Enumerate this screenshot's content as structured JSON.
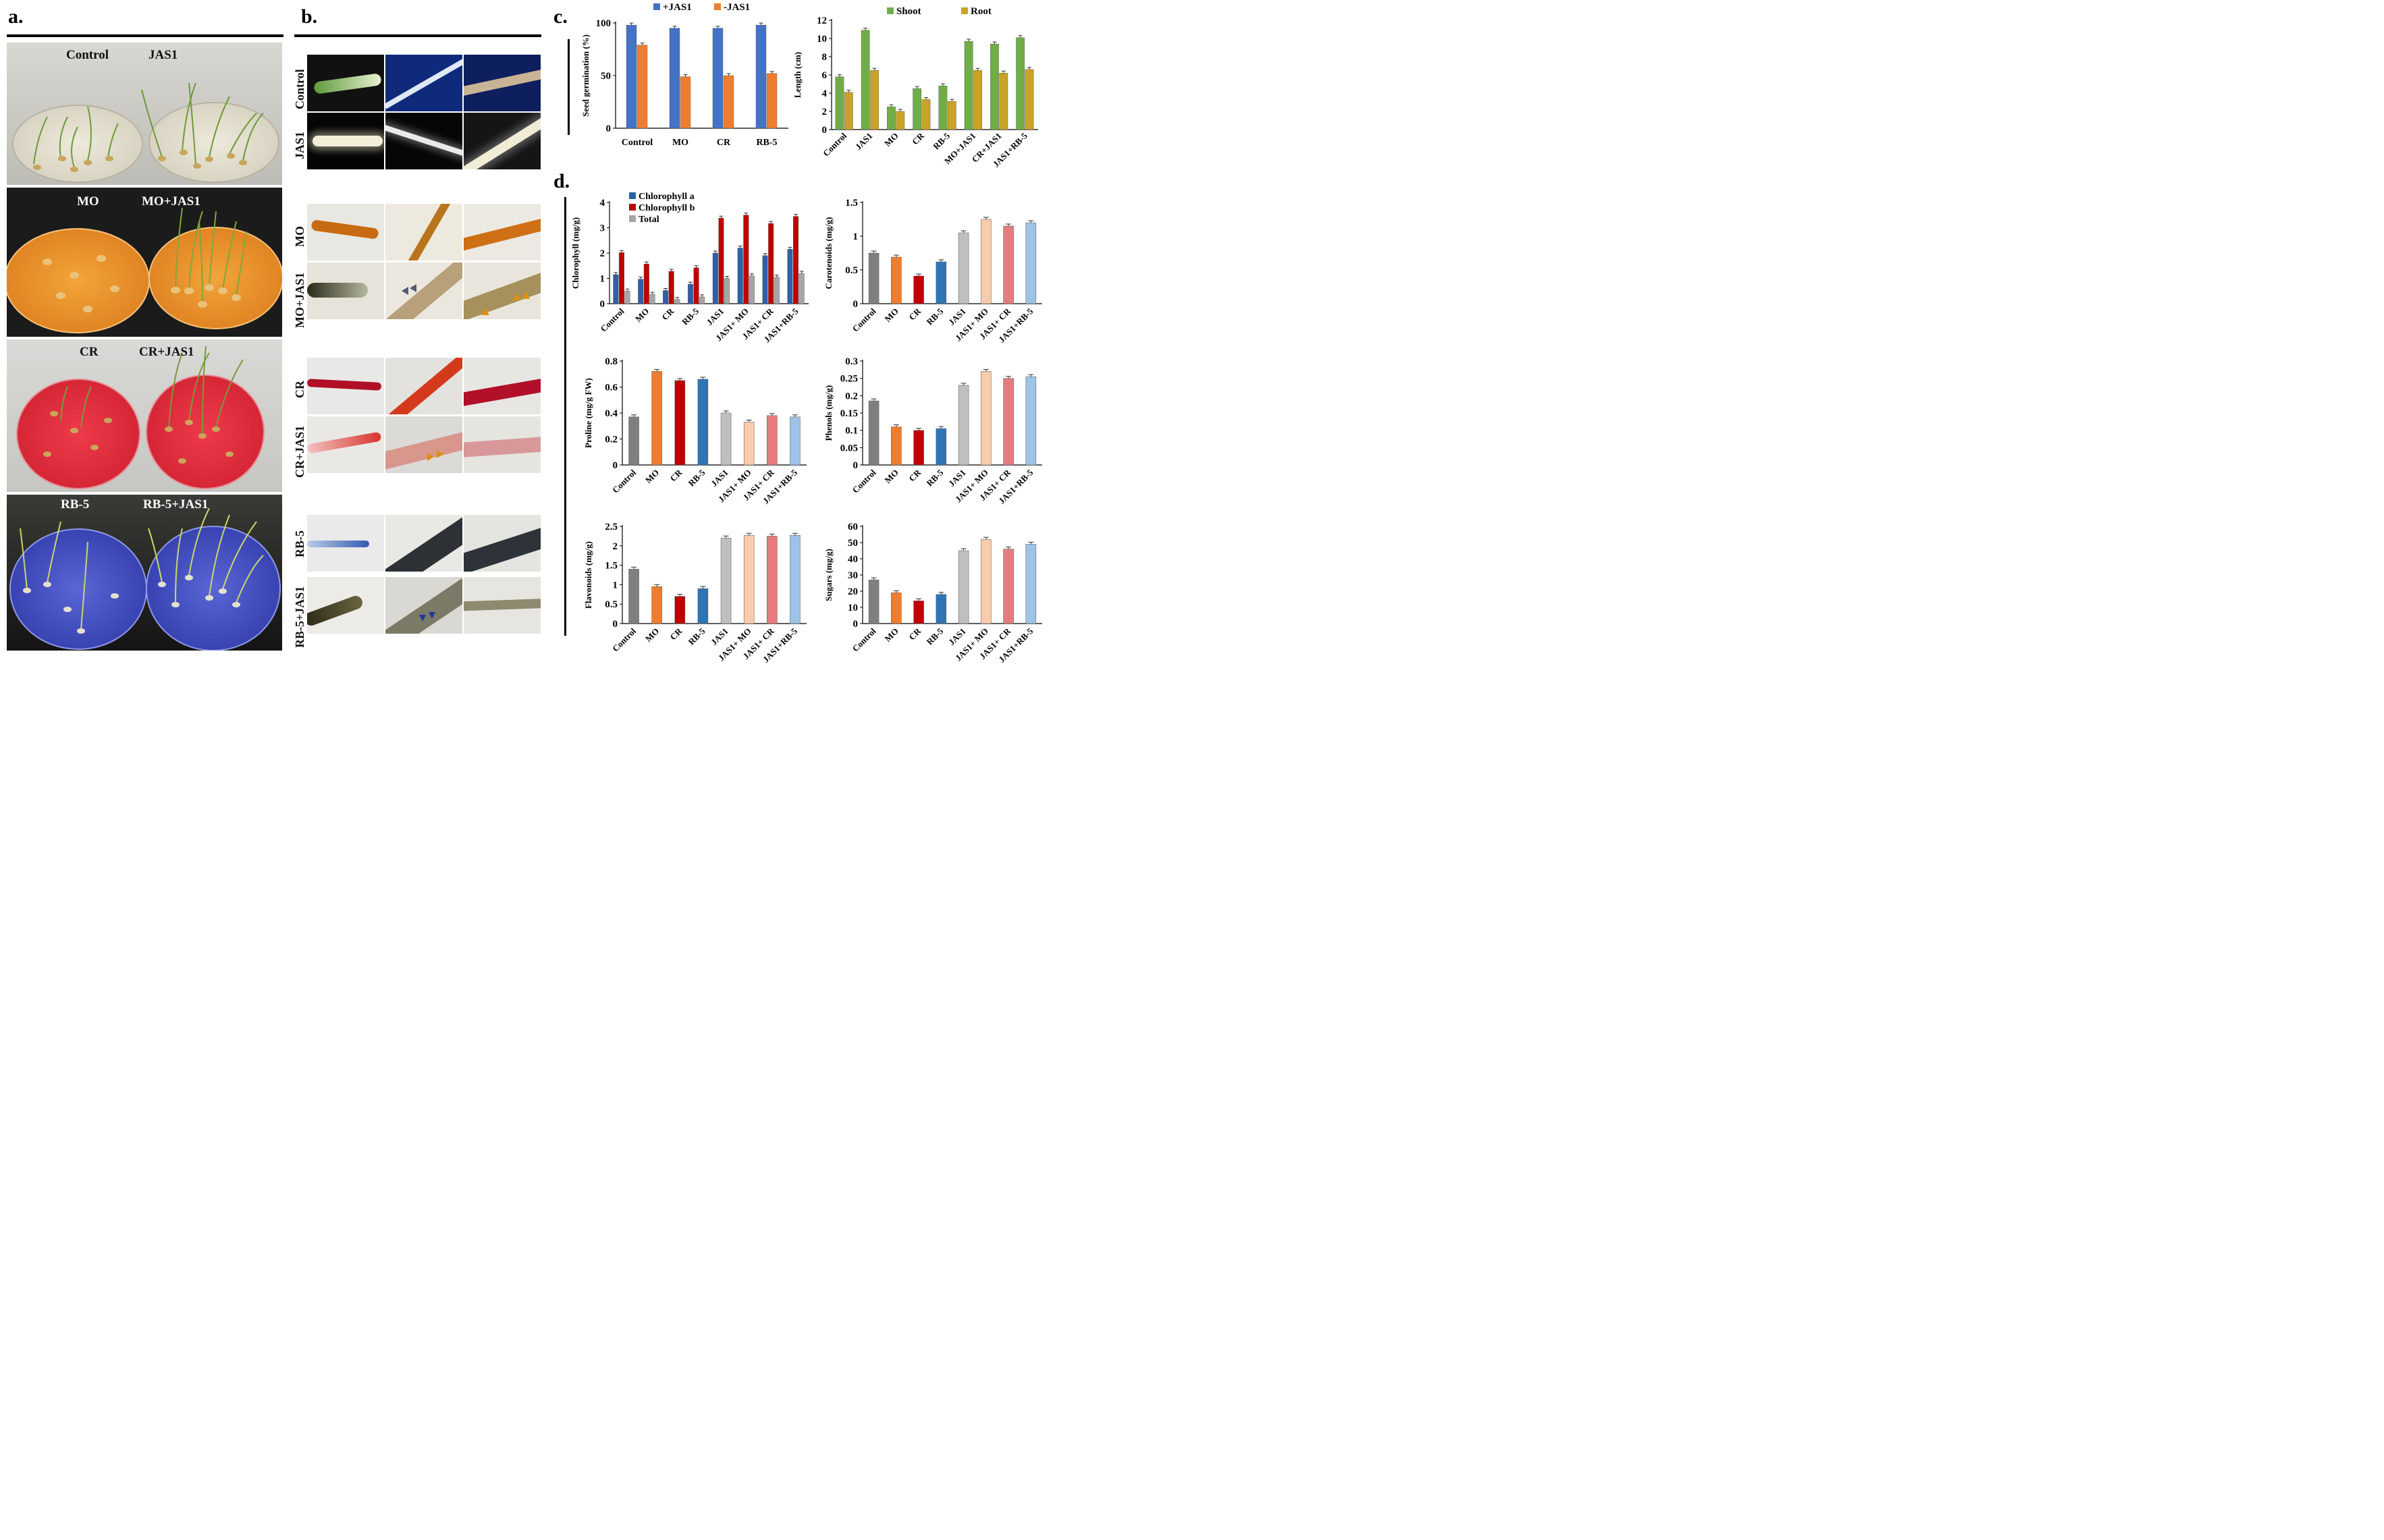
{
  "panels": {
    "a": "a.",
    "b": "b.",
    "c": "c.",
    "d": "d."
  },
  "colors": {
    "plus_jas1": "#4472c4",
    "minus_jas1": "#ed7d31",
    "shoot": "#70ad47",
    "root": "#c9a227",
    "chl_a": "#2e5fa8",
    "chl_b": "#c00000",
    "total": "#a6a6a6",
    "treat": [
      "#7f7f7f",
      "#ed7d31",
      "#c00000",
      "#2e75b6",
      "#bfbfbf",
      "#f8cbad",
      "#e67c7c",
      "#9dc3e6"
    ]
  },
  "panel_a": {
    "dishes": [
      {
        "left": "Control",
        "right": "JAS1"
      },
      {
        "left": "MO",
        "right": "MO+JAS1"
      },
      {
        "left": "CR",
        "right": "CR+JAS1"
      },
      {
        "left": "RB-5",
        "right": "RB-5+JAS1"
      }
    ]
  },
  "panel_b": {
    "rows": [
      "Control",
      "JAS1",
      "MO",
      "MO+JAS1",
      "CR",
      "CR+JAS1",
      "RB-5",
      "RB-5+JAS1"
    ]
  },
  "chart_data": [
    {
      "type": "bar",
      "title": "",
      "xlabel": "",
      "ylabel": "Seed germination (%)",
      "categories": [
        "Control",
        "MO",
        "CR",
        "RB-5"
      ],
      "series": [
        {
          "name": "+JAS1",
          "values": [
            98,
            95,
            95,
            98
          ]
        },
        {
          "name": "-JAS1",
          "values": [
            79,
            49,
            50,
            52
          ]
        }
      ],
      "ylim": [
        0,
        100
      ],
      "yticks": [
        0,
        50,
        100
      ],
      "legend": "top"
    },
    {
      "type": "bar",
      "title": "",
      "xlabel": "",
      "ylabel": "Length (cm)",
      "categories": [
        "Control",
        "JAS1",
        "MO",
        "CR",
        "RB-5",
        "MO+JAS1",
        "CR+JAS1",
        "JAS1+RB-5"
      ],
      "series": [
        {
          "name": "Shoot",
          "values": [
            5.8,
            10.9,
            2.5,
            4.5,
            4.8,
            9.7,
            9.4,
            10.1
          ]
        },
        {
          "name": "Root",
          "values": [
            4.1,
            6.5,
            2.0,
            3.3,
            3.1,
            6.5,
            6.2,
            6.6
          ]
        }
      ],
      "ylim": [
        0,
        12
      ],
      "yticks": [
        0,
        2,
        4,
        6,
        8,
        10,
        12
      ],
      "legend": "top"
    },
    {
      "type": "bar",
      "title": "",
      "xlabel": "",
      "ylabel": "Chlorophyll (mg/g)",
      "categories": [
        "Control",
        "MO",
        "CR",
        "RB-5",
        "JAS1",
        "JAS1+ MO",
        "JAS1+ CR",
        "JAS1+RB-5"
      ],
      "series": [
        {
          "name": "Chlorophyll a",
          "values": [
            1.15,
            0.97,
            0.52,
            0.77,
            2.0,
            2.2,
            1.9,
            2.15
          ]
        },
        {
          "name": "Chlorophyll b",
          "values": [
            2.02,
            1.57,
            1.28,
            1.42,
            3.38,
            3.5,
            3.17,
            3.45
          ]
        },
        {
          "name": "Total",
          "values": [
            0.5,
            0.37,
            0.17,
            0.27,
            1.0,
            1.1,
            1.05,
            1.2
          ]
        }
      ],
      "ylim": [
        0,
        4
      ],
      "yticks": [
        0,
        1,
        2,
        3,
        4
      ],
      "legend": "top-left"
    },
    {
      "type": "bar",
      "title": "",
      "xlabel": "",
      "ylabel": "Carotenoids (mg/g)",
      "categories": [
        "Control",
        "MO",
        "CR",
        "RB-5",
        "JAS1",
        "JAS1+ MO",
        "JAS1+ CR",
        "JAS1+RB-5"
      ],
      "values": [
        0.75,
        0.69,
        0.41,
        0.62,
        1.05,
        1.25,
        1.15,
        1.2
      ],
      "ylim": [
        0,
        1.5
      ],
      "yticks": [
        0,
        0.5,
        1,
        1.5
      ]
    },
    {
      "type": "bar",
      "title": "",
      "xlabel": "",
      "ylabel": "Proline (mg/g FW)",
      "categories": [
        "Control",
        "MO",
        "CR",
        "RB-5",
        "JAS1",
        "JAS1+ MO",
        "JAS1+ CR",
        "JAS1+RB-5"
      ],
      "values": [
        0.37,
        0.72,
        0.65,
        0.66,
        0.4,
        0.33,
        0.38,
        0.37
      ],
      "ylim": [
        0,
        0.8
      ],
      "yticks": [
        0,
        0.2,
        0.4,
        0.6,
        0.8
      ]
    },
    {
      "type": "bar",
      "title": "",
      "xlabel": "",
      "ylabel": "Phenols (mg/g)",
      "categories": [
        "Control",
        "MO",
        "CR",
        "RB-5",
        "JAS1",
        "JAS1+ MO",
        "JAS1+ CR",
        "JAS1+RB-5"
      ],
      "values": [
        0.185,
        0.11,
        0.1,
        0.105,
        0.23,
        0.27,
        0.25,
        0.255
      ],
      "ylim": [
        0,
        0.3
      ],
      "yticks": [
        0,
        0.05,
        0.1,
        0.15,
        0.2,
        0.25,
        0.3
      ]
    },
    {
      "type": "bar",
      "title": "",
      "xlabel": "",
      "ylabel": "Flavonoids (mg/g)",
      "categories": [
        "Control",
        "MO",
        "CR",
        "RB-5",
        "JAS1",
        "JAS1+ MO",
        "JAS1+ CR",
        "JAS1+RB-5"
      ],
      "values": [
        1.4,
        0.95,
        0.7,
        0.9,
        2.2,
        2.27,
        2.25,
        2.27
      ],
      "ylim": [
        0,
        2.5
      ],
      "yticks": [
        0,
        0.5,
        1,
        1.5,
        2,
        2.5
      ]
    },
    {
      "type": "bar",
      "title": "",
      "xlabel": "",
      "ylabel": "Sugars (mg/g)",
      "categories": [
        "Control",
        "MO",
        "CR",
        "RB-5",
        "JAS1",
        "JAS1+ MO",
        "JAS1+ CR",
        "JAS1+RB-5"
      ],
      "values": [
        27,
        19,
        14,
        18,
        45,
        52,
        46,
        49
      ],
      "ylim": [
        0,
        60
      ],
      "yticks": [
        0,
        10,
        20,
        30,
        40,
        50,
        60
      ]
    }
  ]
}
